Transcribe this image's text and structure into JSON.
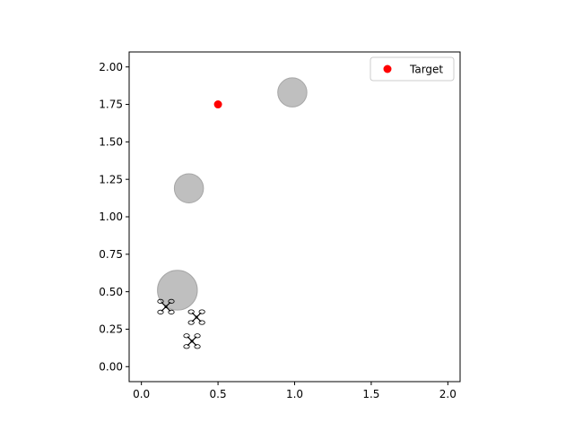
{
  "chart_data": {
    "type": "scatter",
    "title": "",
    "xlabel": "",
    "ylabel": "",
    "xlim": [
      -0.08,
      2.08
    ],
    "ylim": [
      -0.1,
      2.1
    ],
    "xticks": [
      0.0,
      0.5,
      1.0,
      1.5,
      2.0
    ],
    "yticks": [
      0.0,
      0.25,
      0.5,
      0.75,
      1.0,
      1.25,
      1.5,
      1.75,
      2.0
    ],
    "xtick_labels": [
      "0.0",
      "0.5",
      "1.0",
      "1.5",
      "2.0"
    ],
    "ytick_labels": [
      "0.00",
      "0.25",
      "0.50",
      "0.75",
      "1.00",
      "1.25",
      "1.50",
      "1.75",
      "2.00"
    ],
    "grid": false,
    "legend": {
      "placement": "top-right",
      "entries": [
        {
          "label": "Target",
          "color": "#ff0000"
        }
      ]
    },
    "target": {
      "label": "Target",
      "x": 0.5,
      "y": 1.75,
      "color": "#ff0000"
    },
    "obstacles": [
      {
        "x": 0.985,
        "y": 1.83,
        "r": 0.095,
        "color": "#bfbfbf",
        "edge": "#a6a6a6"
      },
      {
        "x": 0.31,
        "y": 1.19,
        "r": 0.095,
        "color": "#bfbfbf",
        "edge": "#a6a6a6"
      },
      {
        "x": 0.235,
        "y": 0.51,
        "r": 0.13,
        "color": "#bfbfbf",
        "edge": "#a6a6a6"
      }
    ],
    "drones": [
      {
        "x": 0.16,
        "y": 0.4,
        "icon": "quadcopter-icon"
      },
      {
        "x": 0.36,
        "y": 0.33,
        "icon": "quadcopter-icon"
      },
      {
        "x": 0.33,
        "y": 0.17,
        "icon": "quadcopter-icon"
      }
    ]
  }
}
